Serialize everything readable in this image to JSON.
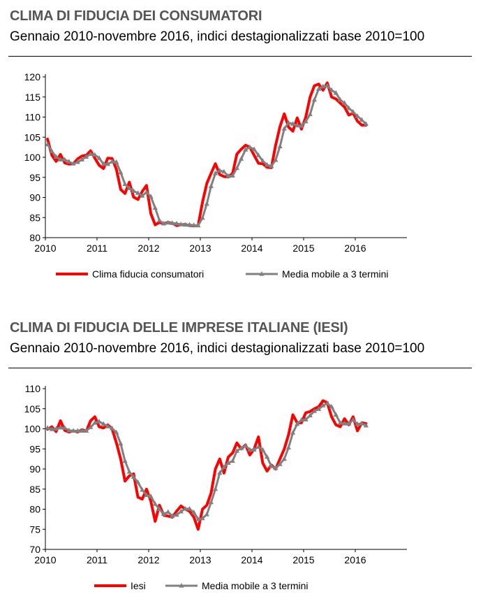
{
  "chart_data": [
    {
      "type": "line",
      "title": "CLIMA DI FIDUCIA DEI CONSUMATORI",
      "subtitle": "Gennaio 2010-novembre 2016, indici destagionalizzati base 2010=100",
      "xlabel": "",
      "ylabel": "",
      "ylim": [
        80,
        120
      ],
      "yticks": [
        "80",
        "85",
        "90",
        "95",
        "100",
        "105",
        "110",
        "115",
        "120"
      ],
      "xticks": [
        "2010",
        "2011",
        "2012",
        "2013",
        "2014",
        "2015",
        "2016"
      ],
      "x_start": "2010-01",
      "x_end": "2016-11",
      "grid": false,
      "legend": "bottom",
      "series": [
        {
          "name": "Clima fiducia consumatori",
          "color": "#ff0000",
          "values": [
            104.5,
            100.5,
            99.0,
            100.7,
            98.6,
            98.3,
            98.4,
            99.6,
            100.3,
            100.5,
            101.6,
            99.8,
            98.0,
            97.2,
            99.8,
            99.7,
            97.0,
            92.0,
            91.0,
            93.8,
            90.1,
            89.5,
            91.5,
            93.0,
            86.0,
            83.2,
            83.8,
            83.5,
            83.8,
            83.6,
            83.0,
            83.2,
            83.3,
            83.0,
            82.9,
            83.0,
            88.8,
            93.5,
            96.0,
            98.4,
            95.7,
            95.2,
            95.1,
            96.0,
            100.8,
            102.0,
            103.0,
            102.5,
            100.5,
            98.5,
            98.4,
            97.5,
            97.4,
            103.0,
            107.6,
            110.8,
            107.5,
            106.5,
            109.8,
            107.0,
            110.0,
            115.0,
            117.8,
            118.2,
            116.7,
            118.5,
            115.0,
            114.5,
            113.5,
            112.5,
            110.5,
            111.0,
            109.0,
            108.0,
            108.0
          ]
        },
        {
          "name": "Media mobile a 3 termini",
          "color": "#808080",
          "values": [
            103.2,
            101.5,
            100.1,
            99.4,
            99.4,
            98.9,
            98.4,
            98.8,
            99.4,
            100.1,
            100.8,
            100.6,
            99.8,
            98.3,
            98.3,
            98.9,
            98.8,
            96.2,
            93.3,
            92.3,
            91.6,
            91.1,
            90.4,
            91.3,
            90.2,
            87.4,
            84.3,
            83.5,
            83.7,
            83.6,
            83.5,
            83.3,
            83.2,
            83.2,
            83.1,
            83.0,
            84.9,
            88.4,
            92.8,
            96.0,
            96.7,
            96.4,
            95.3,
            95.4,
            97.3,
            99.6,
            101.9,
            102.5,
            102.0,
            100.5,
            99.1,
            98.1,
            97.8,
            99.3,
            102.7,
            107.1,
            108.6,
            108.3,
            107.9,
            107.8,
            108.9,
            110.7,
            114.3,
            117.0,
            117.6,
            117.8,
            116.7,
            116.0,
            114.3,
            113.5,
            112.2,
            111.3,
            110.2,
            109.3,
            108.3
          ]
        }
      ]
    },
    {
      "type": "line",
      "title": "CLIMA DI FIDUCIA DELLE IMPRESE ITALIANE (IESI)",
      "subtitle": "Gennaio 2010-novembre 2016, indici destagionalizzati base 2010=100",
      "xlabel": "",
      "ylabel": "",
      "ylim": [
        70,
        110
      ],
      "yticks": [
        "70",
        "75",
        "80",
        "85",
        "90",
        "95",
        "100",
        "105",
        "110"
      ],
      "xticks": [
        "2010",
        "2011",
        "2012",
        "2013",
        "2014",
        "2015",
        "2016"
      ],
      "x_start": "2010-01",
      "x_end": "2016-11",
      "grid": false,
      "legend": "bottom",
      "series": [
        {
          "name": "Iesi",
          "color": "#ff0000",
          "values": [
            99.9,
            100.5,
            99.3,
            102.0,
            99.6,
            99.2,
            99.5,
            99.2,
            99.8,
            99.4,
            102.0,
            103.0,
            100.5,
            100.2,
            101.0,
            100.0,
            96.5,
            92.5,
            87.0,
            88.3,
            88.8,
            83.0,
            82.5,
            85.0,
            82.0,
            77.0,
            81.0,
            78.5,
            78.3,
            78.0,
            79.5,
            80.8,
            80.0,
            79.5,
            78.0,
            75.0,
            80.0,
            81.0,
            84.0,
            90.0,
            92.5,
            89.0,
            93.0,
            94.0,
            96.5,
            95.0,
            96.0,
            93.5,
            95.0,
            98.0,
            91.5,
            89.5,
            91.0,
            90.0,
            92.5,
            95.0,
            98.5,
            103.5,
            101.5,
            101.5,
            104.0,
            104.3,
            105.0,
            105.5,
            107.0,
            106.5,
            103.0,
            101.0,
            100.5,
            102.5,
            101.0,
            103.0,
            99.5,
            101.5,
            101.3
          ]
        },
        {
          "name": "Media mobile a 3 termini",
          "color": "#808080",
          "values": [
            100.2,
            99.9,
            100.0,
            100.3,
            100.2,
            99.6,
            99.5,
            99.5,
            99.5,
            99.5,
            100.4,
            101.5,
            101.8,
            101.2,
            100.6,
            100.1,
            99.1,
            96.3,
            92.0,
            89.3,
            88.0,
            86.7,
            84.8,
            83.5,
            83.2,
            81.3,
            80.0,
            78.8,
            79.3,
            78.3,
            78.6,
            79.4,
            80.1,
            80.1,
            79.2,
            77.5,
            77.7,
            78.7,
            81.7,
            85.0,
            89.0,
            90.5,
            91.5,
            92.0,
            94.5,
            95.2,
            95.8,
            94.8,
            94.8,
            95.5,
            94.8,
            93.0,
            90.7,
            90.2,
            91.2,
            92.5,
            95.3,
            99.0,
            101.2,
            102.2,
            102.3,
            103.3,
            104.4,
            104.9,
            105.8,
            106.3,
            105.5,
            103.5,
            101.5,
            101.3,
            101.3,
            102.2,
            101.2,
            101.3,
            100.8
          ]
        }
      ]
    }
  ]
}
